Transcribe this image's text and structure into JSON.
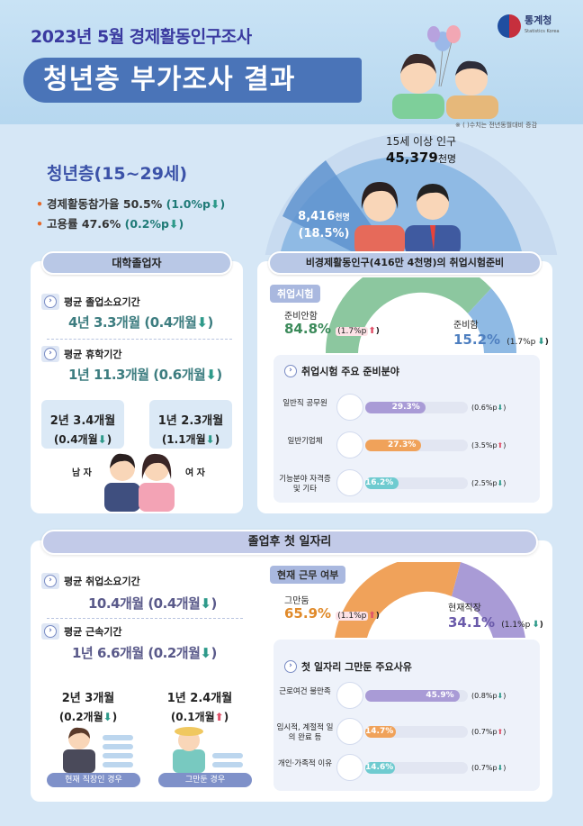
{
  "header": {
    "title_small": "2023년 5월 경제활동인구조사",
    "title_big": "청년층 부가조사 결과",
    "logo_name": "통계청",
    "logo_sub": "Statistics Korea",
    "note": "※ ( )수치는 전년동월대비 증감"
  },
  "population": {
    "label": "15세 이상 인구",
    "value": "45,379",
    "unit": "천명",
    "youth_value": "8,416",
    "youth_unit": "천명",
    "youth_pct": "(18.5%)"
  },
  "youth": {
    "title": "청년층(15~29세)",
    "participation_label": "경제활동참가율",
    "participation_value": "50.5%",
    "participation_change": "(1.0%p",
    "employment_label": "고용률",
    "employment_value": "47.6%",
    "employment_change": "(0.2%p"
  },
  "college": {
    "title": "대학졸업자",
    "avg_grad_label": "평균 졸업소요기간",
    "avg_grad_value": "4년 3.3개월 (0.4개월",
    "avg_leave_label": "평균 휴학기간",
    "avg_leave_value": "1년 11.3개월 (0.6개월",
    "male_l1": "2년 3.4개월",
    "male_l2": "(0.4개월",
    "female_l1": "1년 2.3개월",
    "female_l2": "(1.1개월",
    "male_label": "남 자",
    "female_label": "여 자"
  },
  "exam": {
    "title": "비경제활동인구(416만 4천명)의 취업시험준비",
    "tag": "취업시험",
    "not_prep_label": "준비안함",
    "not_prep_value": "84.8%",
    "not_prep_change": "(1.7%p",
    "prep_label": "준비함",
    "prep_value": "15.2%",
    "prep_change": "(1.7%p",
    "fields_title": "취업시험 주요 준비분야",
    "fields": [
      {
        "label": "일반직 공무원",
        "value": "29.3%",
        "pct": 29.3,
        "change": "(0.6%p",
        "dir": "down",
        "color": "#a99bd6"
      },
      {
        "label": "일반기업체",
        "value": "27.3%",
        "pct": 27.3,
        "change": "(3.5%p",
        "dir": "up",
        "color": "#f0a25a"
      },
      {
        "label": "기능분야 자격증 및 기타",
        "value": "16.2%",
        "pct": 16.2,
        "change": "(2.5%p",
        "dir": "down",
        "color": "#6fcbd0"
      }
    ]
  },
  "first_job": {
    "title": "졸업후 첫 일자리",
    "avg_search_label": "평균 취업소요기간",
    "avg_search_value": "10.4개월 (0.4개월",
    "avg_tenure_label": "평균 근속기간",
    "avg_tenure_value": "1년 6.6개월 (0.2개월",
    "current_l1": "2년 3개월",
    "current_l2": "(0.2개월",
    "quit_l1": "1년 2.4개월",
    "quit_l2": "(0.1개월",
    "current_case": "현재 직장인 경우",
    "quit_case": "그만둔 경우",
    "status_tag": "현재 근무 여부",
    "quit_label": "그만둠",
    "quit_value": "65.9%",
    "quit_change": "(1.1%p",
    "current_label": "현재직장",
    "current_value": "34.1%",
    "current_change": "(1.1%p",
    "reasons_title": "첫 일자리 그만둔 주요사유",
    "reasons": [
      {
        "label": "근로여건 불만족",
        "value": "45.9%",
        "pct": 45.9,
        "change": "(0.8%p",
        "dir": "down",
        "color": "#a99bd6"
      },
      {
        "label": "임시적, 계절적 일의 완료 등",
        "value": "14.7%",
        "pct": 14.7,
        "change": "(0.7%p",
        "dir": "up",
        "color": "#f0a25a"
      },
      {
        "label": "개인·가족적 이유",
        "value": "14.6%",
        "pct": 14.6,
        "change": "(0.7%p",
        "dir": "down",
        "color": "#6fcbd0"
      }
    ]
  },
  "colors": {
    "accent": "#3d7d80",
    "header_blue": "#4a74b8",
    "down_green": "#2e9a8a",
    "up_red": "#e0526a"
  }
}
